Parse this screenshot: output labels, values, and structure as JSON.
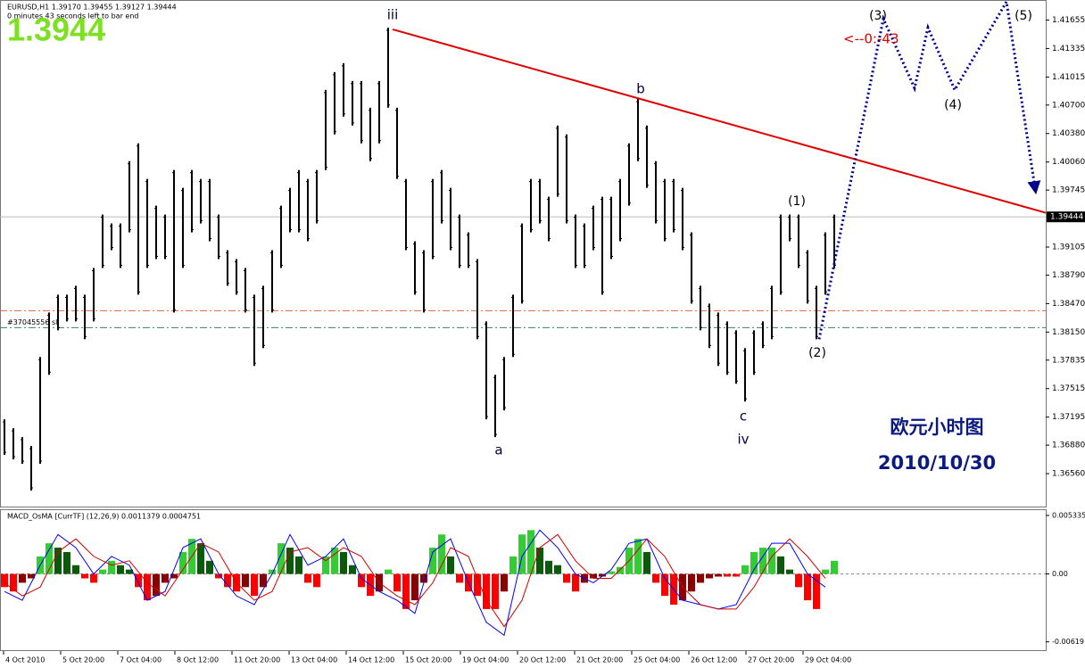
{
  "header": {
    "symbol_line": "EURUSD,H1  1.39170 1.39455 1.39127 1.39444",
    "timer": "0 minutes 43 seconds left to bar end",
    "big_price": "1.3944",
    "countdown": "<--0:-43"
  },
  "chart_data": [
    {
      "type": "hl-bar",
      "color": "#000000",
      "x": [
        2.5,
        7.5,
        12.5,
        17.5,
        22.5,
        27.5,
        32.5,
        37.5,
        42.5,
        47.5,
        52.5,
        57.5,
        62.5,
        67.5,
        72.5,
        77.5,
        82.5,
        87.5,
        92.5,
        97.5,
        102.5,
        107.5,
        112.5,
        117.5,
        122.5,
        127.5,
        132.5,
        137.5,
        142.5,
        147.5,
        152.5,
        157.5,
        162.5,
        167.5,
        172.5,
        177.5,
        182.5,
        187.5,
        192.5,
        197.5,
        202.5,
        207.5,
        212.5,
        217.5,
        222.5,
        227.5,
        232.5,
        237.5,
        242.5,
        247.5,
        252.5,
        257.5,
        262.5,
        267.5,
        272.5,
        277.5,
        282.5,
        287.5,
        292.5,
        297.5,
        302.5,
        307.5,
        312.5,
        317.5,
        322.5,
        327.5,
        332.5,
        337.5,
        342.5,
        347.5,
        352.5,
        357.5,
        362.5,
        367.5,
        372.5,
        377.5,
        382.5,
        387.5,
        392.5,
        397.5,
        402.5,
        407.5,
        412.5,
        417.5,
        422.5,
        427.5,
        432.5,
        437.5,
        442.5,
        447.5,
        452.5,
        457.5,
        462.5,
        467.5
      ],
      "high": [
        1.3717,
        1.3707,
        1.3697,
        1.3687,
        1.3787,
        1.3837,
        1.3857,
        1.3857,
        1.3867,
        1.3857,
        1.3887,
        1.3947,
        1.3937,
        1.3937,
        1.4007,
        1.4027,
        1.3987,
        1.3957,
        1.3947,
        1.3997,
        1.3977,
        1.3997,
        1.3987,
        1.3987,
        1.3947,
        1.3907,
        1.3897,
        1.3887,
        1.3857,
        1.3867,
        1.3907,
        1.3957,
        1.3977,
        1.3997,
        1.3987,
        1.3997,
        1.4087,
        1.4107,
        1.4117,
        1.4097,
        1.4097,
        1.4067,
        1.4097,
        1.4157,
        1.4067,
        1.3987,
        1.3917,
        1.3907,
        1.3987,
        1.3997,
        1.3977,
        1.3947,
        1.3927,
        1.3897,
        1.3827,
        1.3767,
        1.3787,
        1.3857,
        1.3937,
        1.3987,
        1.3987,
        1.3967,
        1.4047,
        1.4037,
        1.3947,
        1.3937,
        1.3957,
        1.3967,
        1.3967,
        1.3987,
        1.4027,
        1.4077,
        1.4047,
        1.4007,
        1.3987,
        1.3987,
        1.3977,
        1.3927,
        1.3867,
        1.3847,
        1.3837,
        1.3827,
        1.3817,
        1.3797,
        1.3817,
        1.3827,
        1.3867,
        1.3947,
        1.3947,
        1.3947,
        1.3907,
        1.3867,
        1.3927,
        1.3947
      ],
      "low": [
        1.3677,
        1.3672,
        1.3667,
        1.3637,
        1.3667,
        1.3767,
        1.3817,
        1.3827,
        1.3827,
        1.3807,
        1.3827,
        1.3887,
        1.3907,
        1.3887,
        1.3927,
        1.3857,
        1.3887,
        1.3897,
        1.3897,
        1.3837,
        1.3887,
        1.3927,
        1.3937,
        1.3917,
        1.3897,
        1.3867,
        1.3857,
        1.3837,
        1.3777,
        1.3797,
        1.3837,
        1.3887,
        1.3927,
        1.3927,
        1.3917,
        1.3937,
        1.3997,
        1.4037,
        1.4057,
        1.4047,
        1.4027,
        1.4007,
        1.4027,
        1.4067,
        1.3987,
        1.3907,
        1.3857,
        1.3837,
        1.3897,
        1.3937,
        1.3907,
        1.3887,
        1.3887,
        1.3807,
        1.3717,
        1.3697,
        1.3727,
        1.3787,
        1.3847,
        1.3927,
        1.3937,
        1.3917,
        1.3967,
        1.3937,
        1.3887,
        1.3887,
        1.3907,
        1.3857,
        1.3897,
        1.3917,
        1.3957,
        1.4007,
        1.3977,
        1.3937,
        1.3917,
        1.3927,
        1.3907,
        1.3847,
        1.3817,
        1.3797,
        1.3777,
        1.3767,
        1.3757,
        1.3737,
        1.3767,
        1.3797,
        1.3807,
        1.3857,
        1.3917,
        1.3887,
        1.3847,
        1.3807,
        1.3857,
        1.3887
      ],
      "xlim": [
        0,
        586
      ],
      "ylim": [
        1.3619,
        1.4187
      ],
      "yticks": [
        {
          "value": 1.41655,
          "label": "1.41655"
        },
        {
          "value": 1.41335,
          "label": "1.41335"
        },
        {
          "value": 1.41015,
          "label": "1.41015"
        },
        {
          "value": 1.407,
          "label": "1.40700"
        },
        {
          "value": 1.4038,
          "label": "1.40380"
        },
        {
          "value": 1.4006,
          "label": "1.40060"
        },
        {
          "value": 1.39745,
          "label": "1.39745"
        },
        {
          "value": 1.39105,
          "label": "1.39105"
        },
        {
          "value": 1.3879,
          "label": "1.38790"
        },
        {
          "value": 1.3847,
          "label": "1.38470"
        },
        {
          "value": 1.3815,
          "label": "1.38150"
        },
        {
          "value": 1.37835,
          "label": "1.37835"
        },
        {
          "value": 1.37515,
          "label": "1.37515"
        },
        {
          "value": 1.37195,
          "label": "1.37195"
        },
        {
          "value": 1.3688,
          "label": "1.36880"
        },
        {
          "value": 1.3656,
          "label": "1.36560"
        }
      ],
      "xticks": [
        {
          "value": 2,
          "label": "4 Oct 2010"
        },
        {
          "value": 34,
          "label": "5 Oct 20:00"
        },
        {
          "value": 66,
          "label": "7 Oct 04:00"
        },
        {
          "value": 98,
          "label": "8 Oct 12:00"
        },
        {
          "value": 130,
          "label": "11 Oct 20:00"
        },
        {
          "value": 162,
          "label": "13 Oct 04:00"
        },
        {
          "value": 194,
          "label": "14 Oct 12:00"
        },
        {
          "value": 226,
          "label": "15 Oct 20:00"
        },
        {
          "value": 258,
          "label": "19 Oct 04:00"
        },
        {
          "value": 290,
          "label": "20 Oct 12:00"
        },
        {
          "value": 322,
          "label": "21 Oct 20:00"
        },
        {
          "value": 354,
          "label": "25 Oct 04:00"
        },
        {
          "value": 386,
          "label": "26 Oct 12:00"
        },
        {
          "value": 418,
          "label": "27 Oct 20:00"
        },
        {
          "value": 450,
          "label": "29 Oct 04:00"
        }
      ],
      "current_price": {
        "value": 1.39444,
        "label": "1.39444"
      },
      "levels": [
        {
          "value": 1.3839,
          "color": "#e8603c"
        },
        {
          "value": 1.382,
          "color": "#2e8b57",
          "label": "#37045556 sl"
        }
      ],
      "trendline": {
        "x": [
          220,
          586
        ],
        "values": [
          1.4155,
          1.3949
        ],
        "color": "#e00000"
      },
      "projection": {
        "x": [
          459,
          479,
          495,
          512.5,
          520,
          535,
          564,
          580
        ],
        "values": [
          1.3807,
          1.4007,
          1.4167,
          1.4089,
          1.4157,
          1.4087,
          1.4187,
          1.3977
        ],
        "color": "#00008b"
      },
      "annotations": [
        "iii",
        "b",
        "(1)",
        "(2)",
        "a",
        "c",
        "iv",
        "(3)",
        "(4)",
        "(5)"
      ],
      "watermark": [
        "欧元小时图",
        "2010/10/30"
      ]
    },
    {
      "type": "macd",
      "title": "MACD_OsMA [CurrTF] (12,26,9) 0.0011379 0.0004751",
      "x": [
        2.5,
        7.5,
        12.5,
        17.5,
        22.5,
        27.5,
        32.5,
        37.5,
        42.5,
        47.5,
        52.5,
        57.5,
        62.5,
        67.5,
        72.5,
        77.5,
        82.5,
        87.5,
        92.5,
        97.5,
        102.5,
        107.5,
        112.5,
        117.5,
        122.5,
        127.5,
        132.5,
        137.5,
        142.5,
        147.5,
        152.5,
        157.5,
        162.5,
        167.5,
        172.5,
        177.5,
        182.5,
        187.5,
        192.5,
        197.5,
        202.5,
        207.5,
        212.5,
        217.5,
        222.5,
        227.5,
        232.5,
        237.5,
        242.5,
        247.5,
        252.5,
        257.5,
        262.5,
        267.5,
        272.5,
        277.5,
        282.5,
        287.5,
        292.5,
        297.5,
        302.5,
        307.5,
        312.5,
        317.5,
        322.5,
        327.5,
        332.5,
        337.5,
        342.5,
        347.5,
        352.5,
        357.5,
        362.5,
        367.5,
        372.5,
        377.5,
        382.5,
        387.5,
        392.5,
        397.5,
        402.5,
        407.5,
        412.5,
        417.5,
        422.5,
        427.5,
        432.5,
        437.5,
        442.5,
        447.5,
        452.5,
        457.5,
        462.5,
        467.5
      ],
      "values": [
        -0.0012,
        -0.0016,
        -0.0008,
        -0.0004,
        0.0016,
        0.0028,
        0.0024,
        0.002,
        0.0008,
        -0.0004,
        -0.0008,
        0.0004,
        0.0012,
        0.0008,
        0.0004,
        -0.0012,
        -0.0024,
        -0.002,
        -0.0008,
        -0.0004,
        0.002,
        0.0032,
        0.0028,
        0.0012,
        -0.0004,
        -0.0012,
        -0.0016,
        -0.0012,
        -0.002,
        -0.0012,
        0.0004,
        0.0028,
        0.0024,
        0.0016,
        -0.0008,
        -0.0012,
        0.0016,
        0.0024,
        0.002,
        0.0008,
        -0.0012,
        -0.002,
        -0.0016,
        0.0004,
        -0.0016,
        -0.0032,
        -0.0024,
        -0.0008,
        0.0024,
        0.0036,
        0.0016,
        -0.0008,
        -0.0016,
        -0.002,
        -0.0032,
        -0.0032,
        -0.0016,
        0.0016,
        0.0036,
        0.004,
        0.0024,
        0.0012,
        0.0008,
        -0.0008,
        -0.0016,
        -0.0008,
        -0.0004,
        -0.00024,
        0.00024,
        0.00064,
        0.0024,
        0.0032,
        0.002,
        -0.0008,
        -0.002,
        -0.0028,
        -0.0024,
        -0.0016,
        -0.0008,
        -0.0004,
        -0.00024,
        -0.00024,
        -0.00024,
        0.0008,
        0.002,
        0.0024,
        0.0024,
        0.0016,
        0.0004,
        -0.0012,
        -0.0024,
        -0.0032,
        0.0004,
        0.0012
      ],
      "colors": {
        "up_pos": "#33cc33",
        "down_pos": "#0b5a0b",
        "down_neg": "#ff0000",
        "up_neg": "#8b0000"
      },
      "lines": [
        {
          "color": "#0000ff",
          "x": [
            2.5,
            12.5,
            22.5,
            32.5,
            42.5,
            52.5,
            62.5,
            72.5,
            82.5,
            92.5,
            102.5,
            112.5,
            122.5,
            132.5,
            142.5,
            152.5,
            162.5,
            172.5,
            182.5,
            192.5,
            202.5,
            212.5,
            222.5,
            232.5,
            242.5,
            252.5,
            262.5,
            272.5,
            282.5,
            292.5,
            302.5,
            312.5,
            322.5,
            332.5,
            342.5,
            352.5,
            362.5,
            372.5,
            382.5,
            392.5,
            402.5,
            412.5,
            422.5,
            432.5,
            442.5,
            452.5,
            462.5
          ],
          "values": [
            -0.0016,
            -0.0024,
            0.0008,
            0.0036,
            0.0024,
            0,
            0.0016,
            0.0008,
            -0.0024,
            -0.0016,
            0.0024,
            0.0032,
            0,
            -0.002,
            -0.0028,
            0,
            0.0036,
            0.0008,
            0.0016,
            0.0032,
            -0.0004,
            -0.0016,
            -0.0024,
            -0.0036,
            0.002,
            0.0032,
            -0.0008,
            -0.0044,
            -0.0056,
            0.0016,
            0.004,
            0.0024,
            0,
            -0.0008,
            0.0004,
            0.0028,
            0.0032,
            -0.0004,
            -0.0024,
            -0.0028,
            -0.0032,
            -0.0028,
            0.0004,
            0.0028,
            0.0028,
            0,
            -0.0012
          ]
        },
        {
          "color": "#d00000",
          "x": [
            2.5,
            12.5,
            22.5,
            32.5,
            42.5,
            52.5,
            62.5,
            72.5,
            82.5,
            92.5,
            102.5,
            112.5,
            122.5,
            132.5,
            142.5,
            152.5,
            162.5,
            172.5,
            182.5,
            192.5,
            202.5,
            212.5,
            222.5,
            232.5,
            242.5,
            252.5,
            262.5,
            272.5,
            282.5,
            292.5,
            302.5,
            312.5,
            322.5,
            332.5,
            342.5,
            352.5,
            362.5,
            372.5,
            382.5,
            392.5,
            402.5,
            412.5,
            422.5,
            432.5,
            442.5,
            452.5,
            462.5
          ],
          "values": [
            -0.0008,
            -0.002,
            -0.0012,
            0.002,
            0.0032,
            0.0016,
            0.0008,
            0.0012,
            -0.0008,
            -0.002,
            0.0004,
            0.0028,
            0.002,
            -0.0008,
            -0.0024,
            -0.0016,
            0.002,
            0.0024,
            0.0012,
            0.0024,
            0.0016,
            -0.0008,
            -0.002,
            -0.0028,
            -0.0008,
            0.0024,
            0.0016,
            -0.0024,
            -0.0048,
            -0.0024,
            0.0024,
            0.0036,
            0.0012,
            -0.0004,
            -0.0004,
            0.0012,
            0.0032,
            0.0016,
            -0.0012,
            -0.0028,
            -0.0032,
            -0.0032,
            -0.0012,
            0.0016,
            0.0032,
            0.0016,
            -0.0004
          ]
        }
      ],
      "xlim": [
        0,
        586
      ],
      "ylim": [
        -0.00703,
        0.00582
      ],
      "yticks": [
        0.005335,
        {
          "value": 0,
          "label": "0.00"
        },
        -0.00619
      ]
    }
  ]
}
